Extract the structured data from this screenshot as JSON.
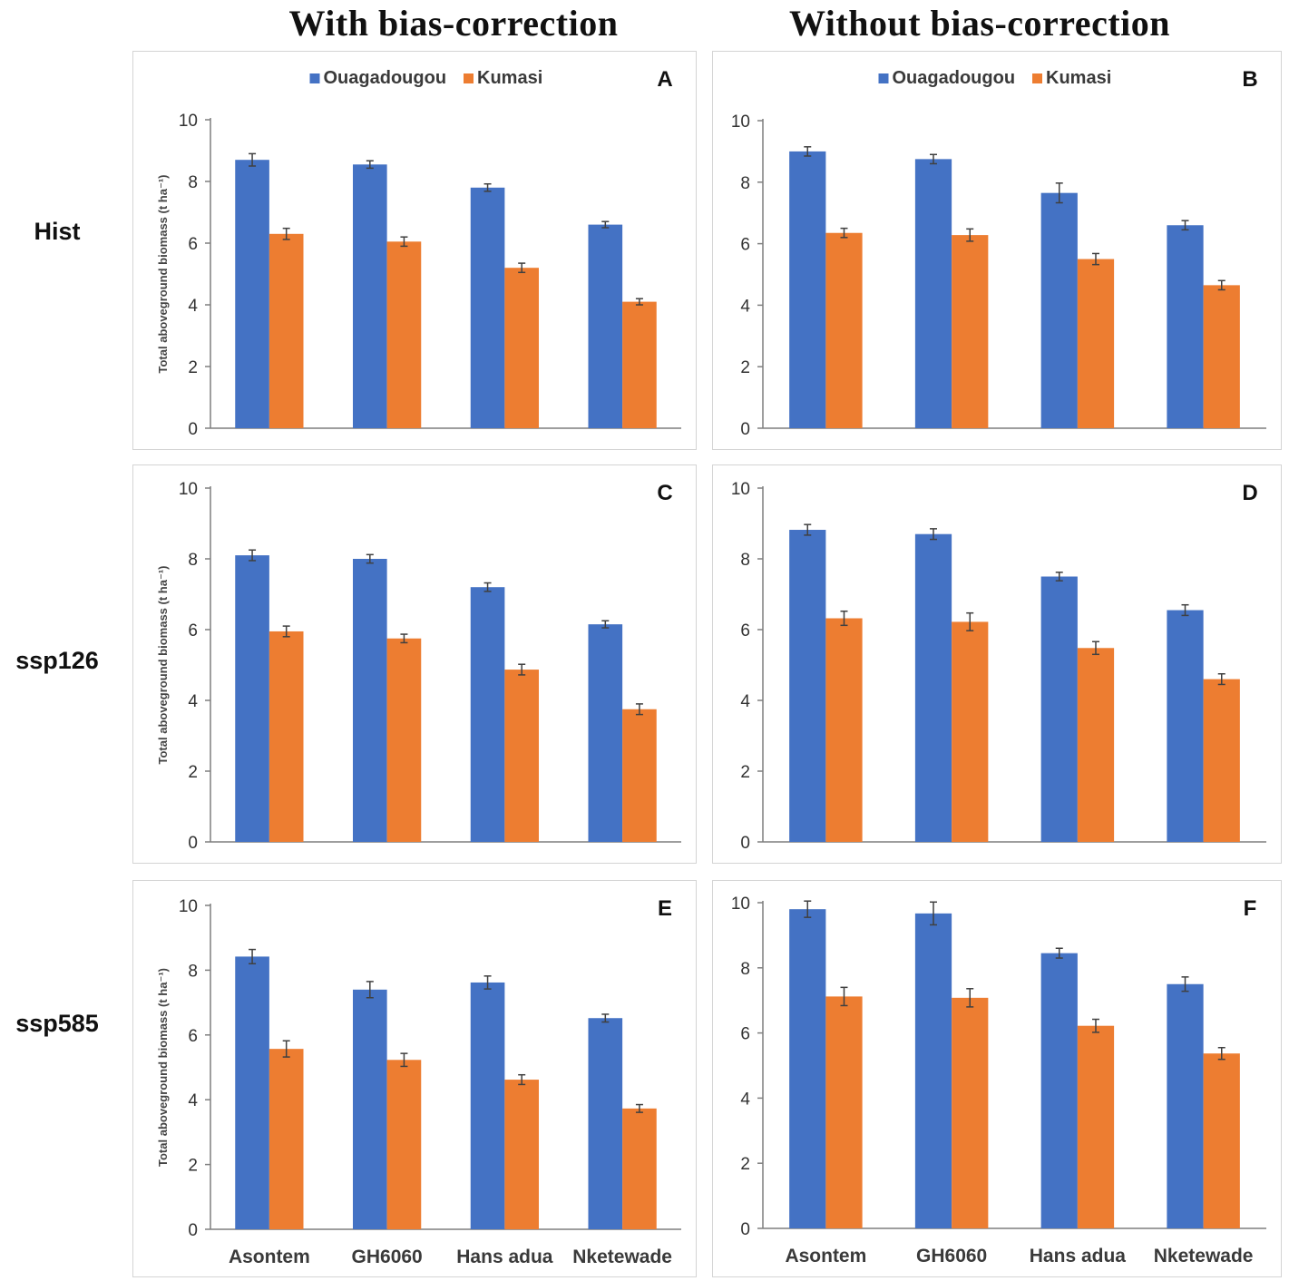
{
  "column_titles": [
    "With bias-correction",
    "Without bias-correction"
  ],
  "row_labels": [
    "Hist",
    "ssp126",
    "ssp585"
  ],
  "colors": {
    "Ouagadougou": "#4472C4",
    "Kumasi": "#ED7D31",
    "axis": "#7f7f7f",
    "errorbar": "#404040"
  },
  "chart_data": [
    {
      "type": "bar",
      "panel_letter": "A",
      "scenario": "Hist",
      "correction": "With bias-correction",
      "categories": [
        "Asontem",
        "GH6060",
        "Hans adua",
        "Nketewade"
      ],
      "series": [
        {
          "name": "Ouagadougou",
          "values": [
            8.7,
            8.55,
            7.8,
            6.6
          ],
          "errors": [
            0.2,
            0.12,
            0.12,
            0.1
          ]
        },
        {
          "name": "Kumasi",
          "values": [
            6.3,
            6.05,
            5.2,
            4.1
          ],
          "errors": [
            0.18,
            0.15,
            0.15,
            0.1
          ]
        }
      ],
      "title": "",
      "xlabel": "",
      "ylabel": "Total aboveground biomass (t ha⁻¹)",
      "ylim": [
        0,
        10
      ],
      "yticks": [
        0,
        2,
        4,
        6,
        8,
        10
      ],
      "show_category_labels": false,
      "legend": "top-center"
    },
    {
      "type": "bar",
      "panel_letter": "B",
      "scenario": "Hist",
      "correction": "Without bias-correction",
      "categories": [
        "Asontem",
        "GH6060",
        "Hans adua",
        "Nketewade"
      ],
      "series": [
        {
          "name": "Ouagadougou",
          "values": [
            9.0,
            8.75,
            7.65,
            6.6
          ],
          "errors": [
            0.15,
            0.15,
            0.32,
            0.15
          ]
        },
        {
          "name": "Kumasi",
          "values": [
            6.35,
            6.28,
            5.5,
            4.65
          ],
          "errors": [
            0.15,
            0.2,
            0.18,
            0.15
          ]
        }
      ],
      "title": "",
      "xlabel": "",
      "ylabel": "",
      "ylim": [
        0,
        10
      ],
      "yticks": [
        0,
        2,
        4,
        6,
        8,
        10
      ],
      "show_category_labels": false,
      "legend": "top-center"
    },
    {
      "type": "bar",
      "panel_letter": "C",
      "scenario": "ssp126",
      "correction": "With bias-correction",
      "categories": [
        "Asontem",
        "GH6060",
        "Hans adua",
        "Nketewade"
      ],
      "series": [
        {
          "name": "Ouagadougou",
          "values": [
            8.1,
            8.0,
            7.2,
            6.15
          ],
          "errors": [
            0.15,
            0.12,
            0.12,
            0.1
          ]
        },
        {
          "name": "Kumasi",
          "values": [
            5.95,
            5.75,
            4.87,
            3.75
          ],
          "errors": [
            0.15,
            0.12,
            0.15,
            0.15
          ]
        }
      ],
      "title": "",
      "xlabel": "",
      "ylabel": "Total aboveground biomass (t ha⁻¹)",
      "ylim": [
        0,
        10
      ],
      "yticks": [
        0,
        2,
        4,
        6,
        8,
        10
      ],
      "show_category_labels": false,
      "legend": "none"
    },
    {
      "type": "bar",
      "panel_letter": "D",
      "scenario": "ssp126",
      "correction": "Without bias-correction",
      "categories": [
        "Asontem",
        "GH6060",
        "Hans adua",
        "Nketewade"
      ],
      "series": [
        {
          "name": "Ouagadougou",
          "values": [
            8.82,
            8.7,
            7.5,
            6.55
          ],
          "errors": [
            0.15,
            0.15,
            0.12,
            0.15
          ]
        },
        {
          "name": "Kumasi",
          "values": [
            6.32,
            6.22,
            5.48,
            4.6
          ],
          "errors": [
            0.2,
            0.25,
            0.18,
            0.15
          ]
        }
      ],
      "title": "",
      "xlabel": "",
      "ylabel": "",
      "ylim": [
        0,
        10
      ],
      "yticks": [
        0,
        2,
        4,
        6,
        8,
        10
      ],
      "show_category_labels": false,
      "legend": "none"
    },
    {
      "type": "bar",
      "panel_letter": "E",
      "scenario": "ssp585",
      "correction": "With bias-correction",
      "categories": [
        "Asontem",
        "GH6060",
        "Hans adua",
        "Nketewade"
      ],
      "series": [
        {
          "name": "Ouagadougou",
          "values": [
            8.42,
            7.4,
            7.62,
            6.52
          ],
          "errors": [
            0.22,
            0.25,
            0.2,
            0.12
          ]
        },
        {
          "name": "Kumasi",
          "values": [
            5.57,
            5.23,
            4.62,
            3.73
          ],
          "errors": [
            0.25,
            0.2,
            0.15,
            0.12
          ]
        }
      ],
      "title": "",
      "xlabel": "",
      "ylabel": "Total aboveground biomass (t ha⁻¹)",
      "ylim": [
        0,
        10
      ],
      "yticks": [
        0,
        2,
        4,
        6,
        8,
        10
      ],
      "show_category_labels": true,
      "legend": "none"
    },
    {
      "type": "bar",
      "panel_letter": "F",
      "scenario": "ssp585",
      "correction": "Without bias-correction",
      "categories": [
        "Asontem",
        "GH6060",
        "Hans adua",
        "Nketewade"
      ],
      "series": [
        {
          "name": "Ouagadougou",
          "values": [
            9.8,
            9.67,
            8.45,
            7.5
          ],
          "errors": [
            0.25,
            0.35,
            0.15,
            0.22
          ]
        },
        {
          "name": "Kumasi",
          "values": [
            7.12,
            7.08,
            6.22,
            5.37
          ],
          "errors": [
            0.28,
            0.28,
            0.2,
            0.18
          ]
        }
      ],
      "title": "",
      "xlabel": "",
      "ylabel": "",
      "ylim": [
        0,
        10
      ],
      "yticks": [
        0,
        2,
        4,
        6,
        8,
        10
      ],
      "show_category_labels": true,
      "legend": "none"
    }
  ]
}
